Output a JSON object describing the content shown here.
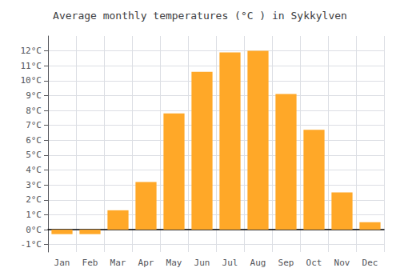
{
  "chart_data": {
    "type": "bar",
    "title": "Average monthly temperatures (°C ) in Sykkylven",
    "categories": [
      "Jan",
      "Feb",
      "Mar",
      "Apr",
      "May",
      "Jun",
      "Jul",
      "Aug",
      "Sep",
      "Oct",
      "Nov",
      "Dec"
    ],
    "values": [
      -0.3,
      -0.3,
      1.3,
      3.2,
      7.8,
      10.6,
      11.9,
      12.0,
      9.1,
      6.7,
      2.5,
      0.5
    ],
    "color": "#FFA828",
    "ylim": [
      -1.5,
      13.0
    ],
    "yticks": [
      {
        "value": -1,
        "label": "-1°C"
      },
      {
        "value": 0,
        "label": "0°C"
      },
      {
        "value": 1,
        "label": "1°C"
      },
      {
        "value": 2,
        "label": "2°C"
      },
      {
        "value": 3,
        "label": "3°C"
      },
      {
        "value": 4,
        "label": "4°C"
      },
      {
        "value": 5,
        "label": "5°C"
      },
      {
        "value": 6,
        "label": "6°C"
      },
      {
        "value": 7,
        "label": "7°C"
      },
      {
        "value": 8,
        "label": "8°C"
      },
      {
        "value": 9,
        "label": "9°C"
      },
      {
        "value": 10,
        "label": "10°C"
      },
      {
        "value": 11,
        "label": "11°C"
      },
      {
        "value": 12,
        "label": "12°C"
      }
    ],
    "grid": true
  }
}
